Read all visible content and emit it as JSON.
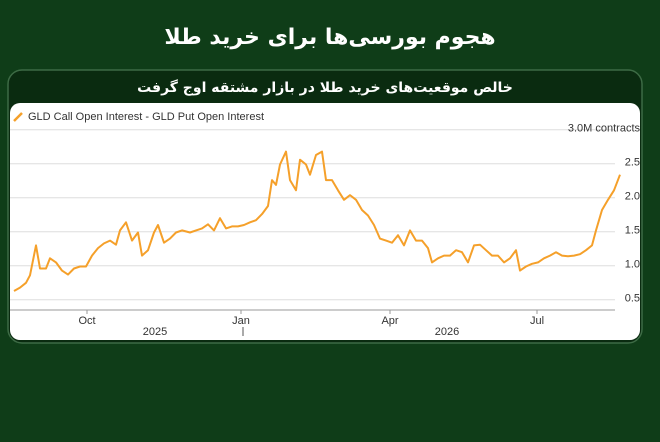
{
  "title": "هجوم بورسی‌ها برای خرید طلا",
  "chart_data": {
    "type": "line",
    "title": "خالص موقعیت‌های خرید طلا در بازار مشتقه اوج گرفت",
    "x": [
      0,
      6,
      12,
      16,
      22,
      26,
      32,
      36,
      42,
      48,
      54,
      60,
      66,
      72,
      78,
      84,
      90,
      96,
      102,
      106,
      112,
      118,
      124,
      128,
      134,
      140,
      144,
      150,
      156,
      162,
      168,
      176,
      182,
      188,
      194,
      200,
      206,
      212,
      218,
      224,
      230,
      236,
      242,
      248,
      254,
      258,
      262,
      266,
      272,
      276,
      282,
      286,
      292,
      296,
      302,
      308,
      312,
      318,
      324,
      330,
      336,
      342,
      348,
      354,
      360,
      366,
      372,
      378,
      384,
      390,
      396,
      402,
      408,
      414,
      418,
      424,
      430,
      436,
      442,
      448,
      454,
      460,
      466,
      472,
      478,
      484,
      490,
      496,
      502,
      506,
      512,
      518,
      524,
      530,
      536,
      542,
      548,
      554,
      560,
      566,
      572,
      578,
      582,
      588,
      594,
      600,
      606
    ],
    "series": [
      {
        "name": "GLD Call Open Interest - GLD Put Open Interest",
        "color": "#f5a02a",
        "values": [
          0.63,
          0.68,
          0.75,
          0.86,
          1.3,
          0.96,
          0.96,
          1.11,
          1.05,
          0.93,
          0.87,
          0.96,
          0.99,
          0.99,
          1.15,
          1.26,
          1.33,
          1.37,
          1.31,
          1.52,
          1.64,
          1.37,
          1.49,
          1.15,
          1.23,
          1.49,
          1.6,
          1.34,
          1.4,
          1.49,
          1.52,
          1.49,
          1.52,
          1.55,
          1.61,
          1.52,
          1.7,
          1.55,
          1.58,
          1.58,
          1.6,
          1.64,
          1.67,
          1.76,
          1.88,
          2.26,
          2.19,
          2.49,
          2.68,
          2.26,
          2.11,
          2.56,
          2.49,
          2.34,
          2.63,
          2.68,
          2.26,
          2.26,
          2.11,
          1.97,
          2.04,
          1.97,
          1.82,
          1.74,
          1.6,
          1.4,
          1.37,
          1.34,
          1.45,
          1.3,
          1.52,
          1.37,
          1.37,
          1.26,
          1.05,
          1.11,
          1.15,
          1.15,
          1.23,
          1.2,
          1.05,
          1.3,
          1.31,
          1.23,
          1.15,
          1.15,
          1.05,
          1.11,
          1.23,
          0.93,
          0.99,
          1.03,
          1.05,
          1.11,
          1.15,
          1.2,
          1.15,
          1.14,
          1.15,
          1.17,
          1.23,
          1.3,
          1.52,
          1.82,
          1.97,
          2.11,
          2.34
        ]
      }
    ],
    "xlim": [
      -4,
      616
    ],
    "xticks": [
      {
        "value": 73,
        "label": "Oct"
      },
      {
        "value": 227,
        "label": "Jan"
      },
      {
        "value": 376,
        "label": "Apr"
      },
      {
        "value": 523,
        "label": "Jul"
      }
    ],
    "years": [
      "2025",
      "2026"
    ],
    "ylim": [
      0.35,
      3.1
    ],
    "yticks": [
      0.5,
      {
        "value": 1.0,
        "label": "1.0"
      },
      1.5,
      {
        "value": 2.0,
        "label": "2.0"
      },
      2.5,
      {
        "value": 3.0,
        "label": "3.0M contracts"
      }
    ],
    "grid": true
  }
}
